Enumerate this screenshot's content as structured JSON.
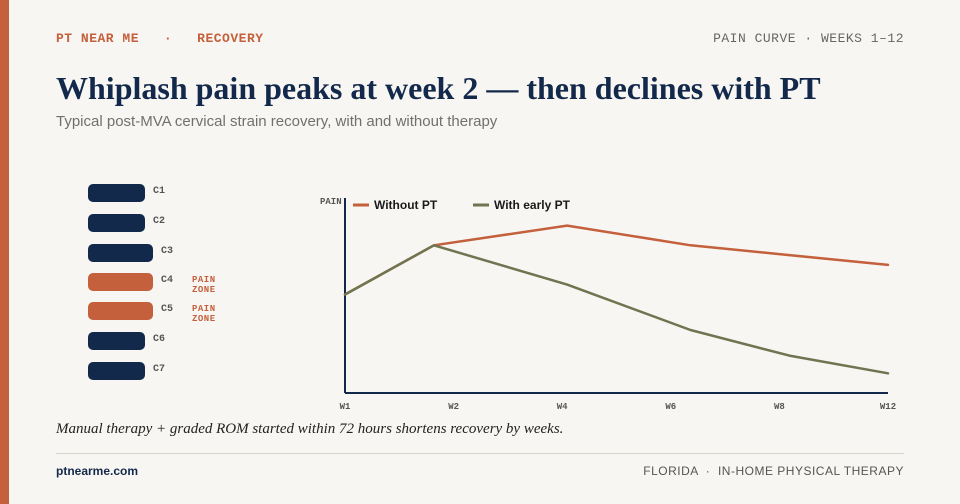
{
  "header": {
    "brand": "PT NEAR ME",
    "separator": "·",
    "section": "RECOVERY",
    "corner_label": "PAIN CURVE · WEEKS 1–12",
    "title": "Whiplash pain peaks at week 2 — then declines with PT",
    "subtitle": "Typical post-MVA cervical strain recovery, with and without therapy"
  },
  "spine": {
    "vertebrae": [
      {
        "label": "C1",
        "pain": false,
        "pain_label": ""
      },
      {
        "label": "C2",
        "pain": false,
        "pain_label": ""
      },
      {
        "label": "C3",
        "pain": false,
        "pain_label": ""
      },
      {
        "label": "C4",
        "pain": true,
        "pain_label": "PAIN ZONE"
      },
      {
        "label": "C5",
        "pain": true,
        "pain_label": "PAIN ZONE"
      },
      {
        "label": "C6",
        "pain": false,
        "pain_label": ""
      },
      {
        "label": "C7",
        "pain": false,
        "pain_label": ""
      }
    ],
    "colors": {
      "normal": "#13294b",
      "pain": "#c4603c"
    }
  },
  "chart_data": {
    "type": "line",
    "title": "",
    "xlabel": "",
    "ylabel": "PAIN",
    "x_ticks": [
      "W1",
      "W2",
      "W4",
      "W6",
      "W8",
      "W12"
    ],
    "xlim": [
      1,
      12
    ],
    "ylim": [
      0,
      10
    ],
    "grid": false,
    "legend_position": "top-left",
    "series": [
      {
        "name": "Without PT",
        "color": "#c4603c",
        "x": [
          1,
          2.8,
          5.5,
          8,
          10,
          12
        ],
        "y": [
          5,
          7.5,
          8.5,
          7.5,
          7,
          6.5
        ]
      },
      {
        "name": "With early PT",
        "color": "#6e7550",
        "x": [
          1,
          2.8,
          5.5,
          8,
          10,
          12
        ],
        "y": [
          5,
          7.5,
          5.5,
          3.2,
          1.9,
          1
        ]
      }
    ]
  },
  "footer": {
    "note": "Manual therapy + graded ROM started within 72 hours shortens recovery by weeks.",
    "site": "ptnearme.com",
    "region": "FLORIDA",
    "separator": "·",
    "service": "IN-HOME PHYSICAL THERAPY"
  }
}
